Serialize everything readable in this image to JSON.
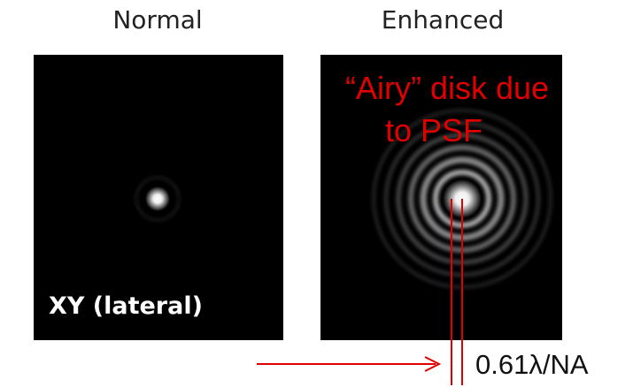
{
  "panels": [
    {
      "title": "Normal",
      "label": "XY (lateral)"
    },
    {
      "title": "Enhanced",
      "annotation": [
        "“Airy” disk due",
        "to PSF"
      ]
    }
  ],
  "measure": "0.61λ/NA"
}
